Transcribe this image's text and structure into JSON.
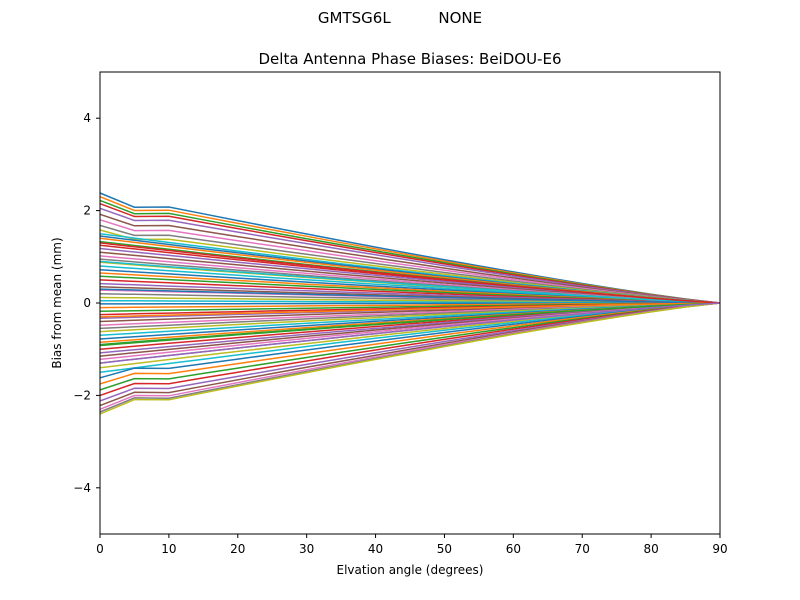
{
  "figure": {
    "suptitle": "GMTSG6L          NONE"
  },
  "chart_data": {
    "type": "line",
    "title": "Delta Antenna Phase Biases: BeiDOU-E6",
    "xlabel": "Elvation angle (degrees)",
    "ylabel": "Bias from mean (mm)",
    "xlim": [
      0,
      90
    ],
    "ylim": [
      -5,
      5
    ],
    "xticks": [
      "0",
      "10",
      "20",
      "30",
      "40",
      "50",
      "60",
      "70",
      "80",
      "90"
    ],
    "yticks": [
      "−4",
      "−2",
      "0",
      "2",
      "4"
    ],
    "grid": false,
    "legend": "none",
    "x": [
      0,
      5,
      10,
      15,
      20,
      25,
      30,
      35,
      40,
      45,
      50,
      55,
      60,
      65,
      70,
      75,
      80,
      85,
      90
    ],
    "colors": [
      "#1f77b4",
      "#ff7f0e",
      "#2ca02c",
      "#d62728",
      "#9467bd",
      "#8c564b",
      "#e377c2",
      "#7f7f7f",
      "#bcbd22",
      "#17becf"
    ],
    "series_start_values": [
      2.38,
      2.3,
      2.22,
      2.15,
      2.05,
      1.92,
      1.8,
      1.68,
      1.58,
      1.5,
      1.45,
      1.4,
      1.33,
      1.25,
      1.18,
      1.1,
      1.02,
      0.95,
      0.88,
      0.8,
      0.72,
      0.65,
      0.58,
      0.5,
      0.42,
      0.35,
      0.28,
      0.2,
      0.12,
      0.05,
      -0.02,
      -0.1,
      -0.18,
      -0.25,
      -0.33,
      -0.4,
      -0.48,
      -0.55,
      -0.62,
      -0.7,
      -0.78,
      -0.85,
      -0.92,
      -1.0,
      -1.08,
      -1.15,
      -1.22,
      -1.3,
      -1.4,
      -1.5,
      -1.62,
      -1.75,
      -1.88,
      -2.0,
      -2.12,
      -2.22,
      -2.3,
      -2.36,
      -2.4,
      0.9,
      0.3,
      -0.3,
      -0.9,
      1.3,
      -1.3
    ]
  }
}
